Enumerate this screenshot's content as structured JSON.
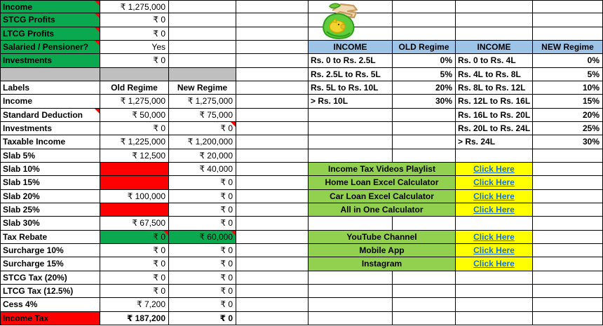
{
  "app": {
    "title": "Income Tax Calculator - Old vs New Regime"
  },
  "colors": {
    "green": "#0BA94F",
    "light_green": "#92D050",
    "gray": "#BFBFBF",
    "red": "#FF0000",
    "blue_header": "#9DC3E6",
    "yellow": "#FFFF00",
    "link_blue": "#1F72C1"
  },
  "icons": {
    "money_bag": "money-bag-icon"
  },
  "left_table": {
    "input_rows": [
      {
        "label": "Income",
        "value": "₹ 1,275,000",
        "note": true
      },
      {
        "label": "STCG Profits",
        "value": "₹ 0",
        "note": true
      },
      {
        "label": "LTCG Profits",
        "value": "₹ 0",
        "note": true
      },
      {
        "label": "Salaried / Pensioner?",
        "value": "Yes",
        "note": true
      },
      {
        "label": "Investments",
        "value": "₹ 0",
        "note": false
      }
    ],
    "header": {
      "labels": "Labels",
      "old": "Old Regime",
      "new": "New Regime"
    },
    "rows": [
      {
        "label": "Income",
        "old": "₹ 1,275,000",
        "new": "₹ 1,275,000"
      },
      {
        "label": "Standard Deduction",
        "old": "₹ 50,000",
        "new": "₹ 75,000",
        "label_note": true
      },
      {
        "label": "Investments",
        "old": "₹ 0",
        "new": "₹ 0",
        "new_note": true
      },
      {
        "label": "Taxable Income",
        "old": "₹ 1,225,000",
        "new": "₹ 1,200,000"
      },
      {
        "label": "Slab 5%",
        "old": "₹ 12,500",
        "new": "₹ 20,000"
      },
      {
        "label": "Slab 10%",
        "old": "",
        "new": "₹ 40,000",
        "old_red": true
      },
      {
        "label": "Slab 15%",
        "old": "",
        "new": "₹ 0",
        "old_red": true
      },
      {
        "label": "Slab 20%",
        "old": "₹ 100,000",
        "new": "₹ 0"
      },
      {
        "label": "Slab 25%",
        "old": "",
        "new": "₹ 0",
        "old_red": true
      },
      {
        "label": "Slab 30%",
        "old": "₹ 67,500",
        "new": "₹ 0"
      },
      {
        "label": "Tax Rebate",
        "old": "₹ 0",
        "new": "₹ 60,000",
        "green": true,
        "old_note": true,
        "new_note": true
      },
      {
        "label": "Surcharge 10%",
        "old": "₹ 0",
        "new": "₹ 0"
      },
      {
        "label": "Surcharge 15%",
        "old": "₹ 0",
        "new": "₹ 0"
      },
      {
        "label": "STCG Tax (20%)",
        "old": "₹ 0",
        "new": "₹ 0"
      },
      {
        "label": "LTCG Tax (12.5%)",
        "old": "₹ 0",
        "new": "₹ 0"
      },
      {
        "label": "Cess 4%",
        "old": "₹ 7,200",
        "new": "₹ 0"
      },
      {
        "label": "Income Tax",
        "old": "₹ 187,200",
        "new": "₹ 0",
        "label_red": true,
        "bold_values": true
      }
    ]
  },
  "slab_tables": {
    "old": {
      "header": {
        "income": "INCOME",
        "regime": "OLD Regime"
      },
      "rows": [
        {
          "range": "Rs. 0 to Rs. 2.5L",
          "rate": "0%"
        },
        {
          "range": "Rs. 2.5L to Rs. 5L",
          "rate": "5%"
        },
        {
          "range": "Rs. 5L to Rs. 10L",
          "rate": "20%"
        },
        {
          "range": "> Rs. 10L",
          "rate": "30%"
        }
      ]
    },
    "new": {
      "header": {
        "income": "INCOME",
        "regime": "NEW Regime"
      },
      "rows": [
        {
          "range": "Rs. 0 to Rs. 4L",
          "rate": "0%"
        },
        {
          "range": "Rs. 4L to Rs. 8L",
          "rate": "5%"
        },
        {
          "range": "Rs. 8L to Rs. 12L",
          "rate": "10%"
        },
        {
          "range": "Rs. 12L to Rs. 16L",
          "rate": "15%"
        },
        {
          "range": "Rs. 16L to Rs. 20L",
          "rate": "20%"
        },
        {
          "range": "Rs. 20L to Rs. 24L",
          "rate": "25%"
        },
        {
          "range": "> Rs. 24L",
          "rate": "30%"
        }
      ]
    }
  },
  "links": {
    "group1": [
      {
        "label": "Income Tax Videos Playlist",
        "action": "Click Here"
      },
      {
        "label": "Home Loan Excel Calculator",
        "action": "Click Here"
      },
      {
        "label": "Car Loan Excel Calculator",
        "action": "Click Here"
      },
      {
        "label": "All in One Calculator",
        "action": "Click Here"
      }
    ],
    "group2": [
      {
        "label": "YouTube Channel",
        "action": "Click Here"
      },
      {
        "label": "Mobile App",
        "action": "Click Here"
      },
      {
        "label": "Instagram",
        "action": "Click Here"
      }
    ]
  }
}
